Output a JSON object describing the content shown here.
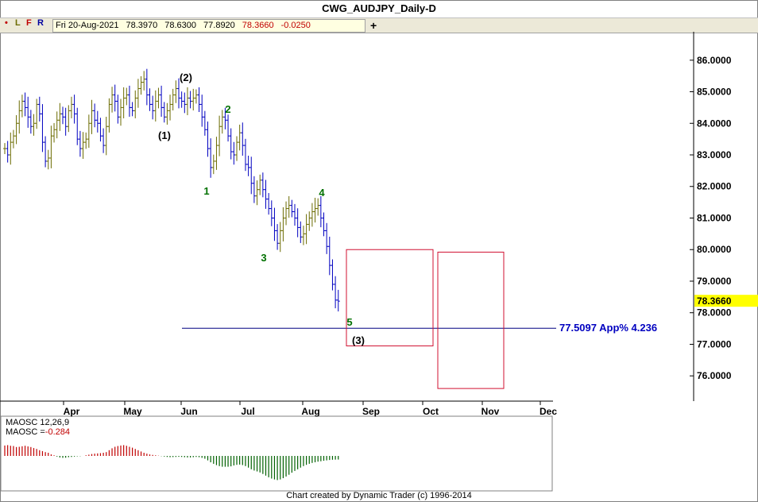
{
  "window": {
    "title": "CWG_AUDJPY_Daily-D"
  },
  "toolbar": {
    "buttons": [
      "•",
      "L",
      "F",
      "R"
    ],
    "date": "Fri 20-Aug-2021",
    "open": "78.3970",
    "high": "78.6300",
    "low": "77.8920",
    "close": "78.3660",
    "change": "-0.0250",
    "plus": "+"
  },
  "colors": {
    "up_bar": "#6b6b00",
    "down_bar": "#0000c0",
    "target_box": "#d01030",
    "target_line": "#000080",
    "label_green": "#007000",
    "price_highlight": "#ffff00",
    "osc_pos": "#c00000",
    "osc_neg": "#006000"
  },
  "chart_data": [
    {
      "type": "ohlc",
      "title": "CWG_AUDJPY_Daily-D",
      "ylim": [
        75.2,
        86.9
      ],
      "x_month_labels": [
        "Apr",
        "May",
        "Jun",
        "Jul",
        "Aug",
        "Sep",
        "Oct",
        "Nov",
        "Dec"
      ],
      "y_tick_labels": [
        "86.0000",
        "85.0000",
        "84.0000",
        "83.0000",
        "82.0000",
        "81.0000",
        "80.0000",
        "79.0000",
        "78.0000",
        "77.0000",
        "76.0000"
      ],
      "y_ticks": [
        86,
        85,
        84,
        83,
        82,
        81,
        80,
        79,
        78,
        77,
        76
      ],
      "last_price_label": "78.3660",
      "last_price": 78.366,
      "series": [
        {
          "values_close": [
            83.2,
            83.0,
            83.4,
            83.6,
            84.0,
            84.4,
            84.7,
            84.5,
            84.2,
            83.9,
            84.0,
            84.6,
            84.3,
            83.4,
            82.8,
            82.9,
            83.6,
            83.8,
            84.1,
            84.3,
            84.2,
            83.9,
            84.4,
            84.6,
            84.3,
            83.5,
            83.2,
            83.4,
            83.5,
            84.0,
            84.4,
            84.1,
            84.0,
            83.6,
            83.3,
            83.9,
            84.6,
            84.9,
            84.7,
            84.2,
            84.5,
            84.8,
            84.9,
            84.5,
            84.4,
            84.8,
            85.1,
            85.3,
            85.4,
            84.9,
            84.6,
            84.4,
            84.7,
            84.9,
            84.5,
            84.2,
            84.4,
            84.6,
            84.9,
            85.1,
            84.8,
            84.7,
            84.6,
            84.8,
            84.7,
            84.8,
            84.9,
            84.6,
            84.2,
            83.8,
            83.2,
            82.6,
            82.8,
            83.3,
            83.9,
            84.2,
            84.1,
            83.6,
            83.1,
            83.0,
            83.4,
            83.7,
            83.3,
            82.7,
            82.6,
            82.1,
            81.7,
            81.9,
            82.2,
            81.9,
            81.6,
            81.3,
            81.0,
            80.6,
            80.2,
            80.6,
            81.0,
            81.3,
            81.4,
            81.2,
            81.0,
            80.7,
            80.4,
            80.5,
            80.8,
            81.0,
            81.2,
            81.3,
            81.4,
            81.0,
            80.6,
            80.1,
            79.5,
            78.9,
            78.4,
            78.366
          ]
        }
      ],
      "annotations": [
        {
          "text": "(1)",
          "color": "black"
        },
        {
          "text": "(2)",
          "color": "black"
        },
        {
          "text": "1",
          "color": "green"
        },
        {
          "text": "2",
          "color": "green"
        },
        {
          "text": "3",
          "color": "green"
        },
        {
          "text": "4",
          "color": "green"
        },
        {
          "text": "5",
          "color": "green"
        },
        {
          "text": "(3)",
          "color": "black"
        }
      ],
      "target_line": {
        "value": 77.5097,
        "label": "77.5097 App% 4.236"
      },
      "target_boxes": [
        {
          "x_start": "Aug",
          "x_end": "Oct",
          "y_top": 80.0,
          "y_bottom": 76.95
        },
        {
          "x_start": "Oct",
          "x_end": "Nov",
          "y_top": 79.92,
          "y_bottom": 75.6
        }
      ]
    },
    {
      "type": "bar",
      "title": "MAOSC 12,26,9",
      "subtitle_prefix": "MAOSC =",
      "last_value": "-0.284",
      "values": [
        0.82,
        0.85,
        0.8,
        0.78,
        0.7,
        0.72,
        0.76,
        0.8,
        0.75,
        0.7,
        0.62,
        0.55,
        0.45,
        0.38,
        0.3,
        0.25,
        0.12,
        0.05,
        -0.05,
        -0.12,
        -0.15,
        -0.14,
        -0.1,
        -0.08,
        -0.05,
        -0.03,
        -0.02,
        0.0,
        0.05,
        0.1,
        0.15,
        0.18,
        0.2,
        0.22,
        0.25,
        0.3,
        0.45,
        0.6,
        0.72,
        0.78,
        0.82,
        0.85,
        0.8,
        0.72,
        0.65,
        0.55,
        0.45,
        0.35,
        0.25,
        0.18,
        0.12,
        0.08,
        0.05,
        0.02,
        -0.02,
        -0.05,
        -0.08,
        -0.1,
        -0.09,
        -0.08,
        -0.07,
        -0.08,
        -0.1,
        -0.12,
        -0.12,
        -0.1,
        -0.08,
        -0.1,
        -0.15,
        -0.22,
        -0.35,
        -0.5,
        -0.62,
        -0.72,
        -0.8,
        -0.85,
        -0.85,
        -0.85,
        -0.82,
        -0.75,
        -0.7,
        -0.68,
        -0.72,
        -0.8,
        -0.92,
        -1.05,
        -1.15,
        -1.22,
        -1.3,
        -1.42,
        -1.55,
        -1.68,
        -1.78,
        -1.85,
        -1.9,
        -1.85,
        -1.75,
        -1.62,
        -1.48,
        -1.32,
        -1.18,
        -1.05,
        -0.92,
        -0.8,
        -0.7,
        -0.62,
        -0.55,
        -0.5,
        -0.45,
        -0.42,
        -0.38,
        -0.35,
        -0.32,
        -0.3,
        -0.29,
        -0.284
      ]
    }
  ],
  "footer": {
    "credit": "Chart created by Dynamic Trader  (c) 1996-2014"
  }
}
